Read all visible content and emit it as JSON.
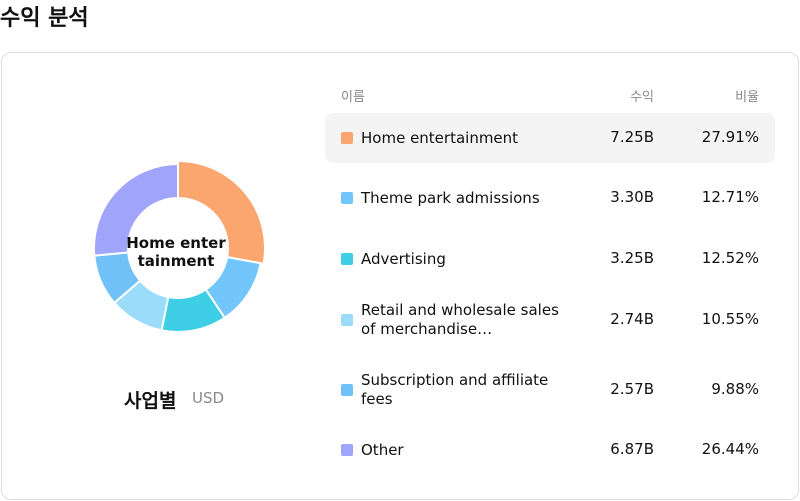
{
  "title": "수익 분석",
  "chart_data": {
    "type": "pie",
    "donut": true,
    "selected": 0,
    "categories": [
      "Home entertainment",
      "Theme park admissions",
      "Advertising",
      "Retail and wholesale sales of merchandise…",
      "Subscription and affiliate fees",
      "Other"
    ],
    "values": [
      27.91,
      12.71,
      12.52,
      10.55,
      9.88,
      26.44
    ],
    "value_labels": [
      "27.91%",
      "12.71%",
      "12.52%",
      "10.55%",
      "9.88%",
      "26.44%"
    ],
    "colors": [
      "#fba56f",
      "#72c6fb",
      "#3ecfe6",
      "#9bdcfb",
      "#6fc1f8",
      "#a0a4fb"
    ]
  },
  "caption": "사업별",
  "currency": "USD",
  "table": {
    "headers": [
      "이름",
      "수익",
      "비율"
    ],
    "revenue": [
      "7.25B",
      "3.30B",
      "3.25B",
      "2.74B",
      "2.57B",
      "6.87B"
    ]
  }
}
